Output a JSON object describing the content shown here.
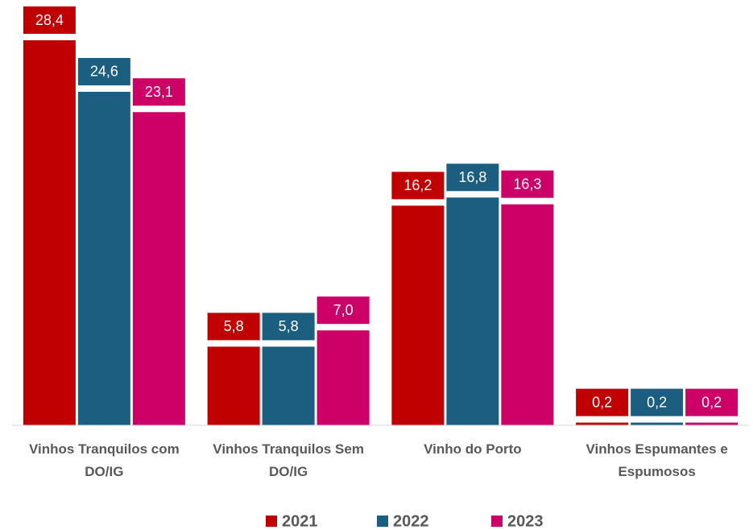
{
  "chart_data": {
    "type": "bar",
    "categories": [
      "Vinhos Tranquilos com DO/IG",
      "Vinhos Tranquilos Sem DO/IG",
      "Vinho do Porto",
      "Vinhos Espumantes e Espumosos"
    ],
    "series": [
      {
        "name": "2021",
        "color": "#c00000",
        "values": [
          28.4,
          5.8,
          16.2,
          0.2
        ],
        "value_labels": [
          "28,4",
          "5,8",
          "16,2",
          "0,2"
        ]
      },
      {
        "name": "2022",
        "color": "#1b5e80",
        "values": [
          24.6,
          5.8,
          16.8,
          0.2
        ],
        "value_labels": [
          "24,6",
          "5,8",
          "16,8",
          "0,2"
        ]
      },
      {
        "name": "2023",
        "color": "#cc0066",
        "values": [
          23.1,
          7.0,
          16.3,
          0.2
        ],
        "value_labels": [
          "23,1",
          "7,0",
          "16,3",
          "0,2"
        ]
      }
    ],
    "legend": "bottom"
  }
}
